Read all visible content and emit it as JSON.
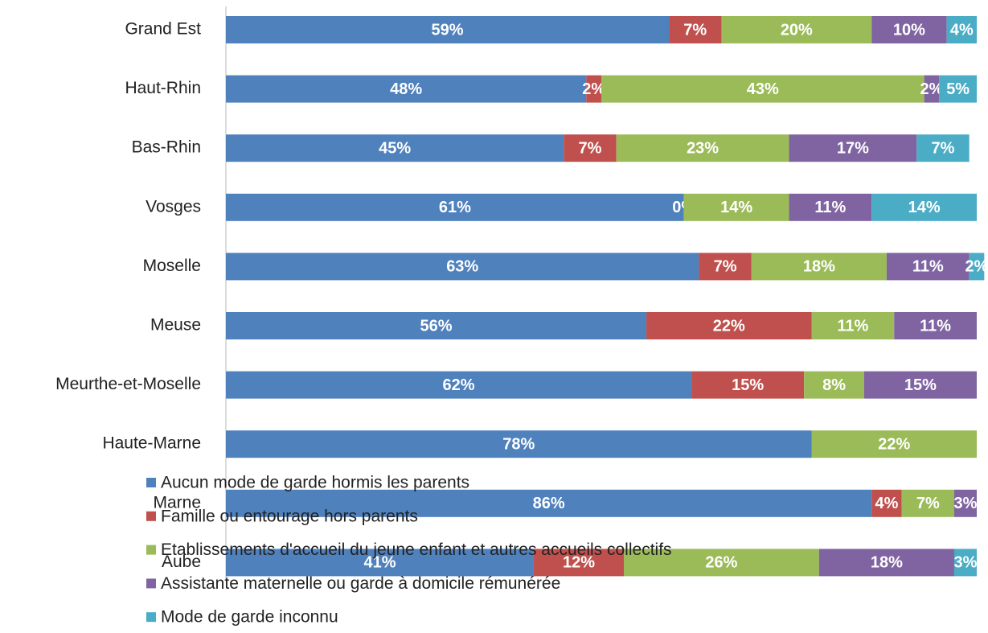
{
  "chart_data": {
    "type": "stacked-bar-horizontal",
    "categories": [
      "Grand Est",
      "Haut-Rhin",
      "Bas-Rhin",
      "Vosges",
      "Moselle",
      "Meuse",
      "Meurthe-et-Moselle",
      "Haute-Marne",
      "Marne",
      "Aube"
    ],
    "series": [
      {
        "name": "Aucun mode de garde hormis les parents",
        "color": "#4f81bd",
        "values": [
          59,
          48,
          45,
          61,
          63,
          56,
          62,
          78,
          86,
          41
        ],
        "value_labels": [
          "59%",
          "48%",
          "45%",
          "61%",
          "63%",
          "56%",
          "62%",
          "78%",
          "86%",
          "41%"
        ]
      },
      {
        "name": "Famille ou entourage hors parents",
        "color": "#c0504d",
        "values": [
          7,
          2,
          7,
          0,
          7,
          22,
          15,
          null,
          4,
          12
        ],
        "value_labels": [
          "7%",
          "2%",
          "7%",
          "0%",
          "7%",
          "22%",
          "15%",
          null,
          "4%",
          "12%"
        ]
      },
      {
        "name": "Etablissements d'accueil du jeune enfant et autres accueils collectifs",
        "color": "#9bbb59",
        "values": [
          20,
          43,
          23,
          14,
          18,
          11,
          8,
          22,
          7,
          26
        ],
        "value_labels": [
          "20%",
          "43%",
          "23%",
          "14%",
          "18%",
          "11%",
          "8%",
          "22%",
          "7%",
          "26%"
        ]
      },
      {
        "name": "Assistante maternelle ou garde à domicile rémunérée",
        "color": "#8064a2",
        "values": [
          10,
          2,
          17,
          11,
          11,
          11,
          15,
          null,
          3,
          18
        ],
        "value_labels": [
          "10%",
          "2%",
          "17%",
          "11%",
          "11%",
          "11%",
          "15%",
          null,
          "3%",
          "18%"
        ]
      },
      {
        "name": "Mode de garde inconnu",
        "color": "#4bacc6",
        "values": [
          4,
          5,
          7,
          14,
          2,
          null,
          null,
          null,
          null,
          3
        ],
        "value_labels": [
          "4%",
          "5%",
          "7%",
          "14%",
          "2%",
          null,
          null,
          null,
          null,
          "3%"
        ]
      }
    ],
    "xlim": [
      0,
      100
    ]
  }
}
